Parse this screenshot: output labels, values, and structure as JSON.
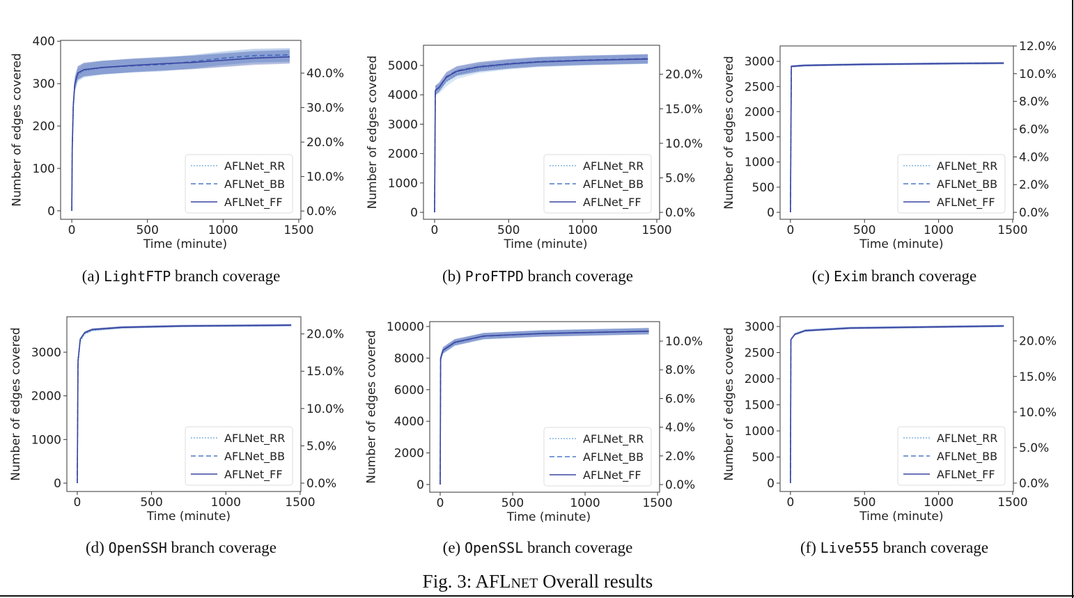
{
  "figure_caption": {
    "prefix": "Fig. 3: AFL",
    "smallcaps": "NET",
    "suffix": " Overall results"
  },
  "colors": {
    "AFLNet_RR": "#7fb2e0",
    "AFLNet_BB": "#4a78c8",
    "AFLNet_FF": "#3a45a0"
  },
  "chart_data": [
    {
      "type": "line",
      "caption_label": "(a)",
      "program": "LightFTP",
      "caption_suffix": "branch coverage",
      "xlabel": "Time (minute)",
      "ylabel": "Number of edges covered",
      "xlim": [
        -74,
        1514
      ],
      "ylim": [
        -20,
        402
      ],
      "y2lim": [
        -2.4,
        49.5
      ],
      "xticks": [
        0,
        500,
        1000,
        1500
      ],
      "yticks": [
        0,
        100,
        200,
        300,
        400
      ],
      "y2ticks": [
        0,
        10,
        20,
        30,
        40
      ],
      "y2format": "%.1f%%",
      "legend": "bottom-right",
      "band": 16,
      "series": [
        {
          "name": "AFLNet_RR",
          "style": "dotted",
          "x": [
            0,
            3,
            10,
            20,
            40,
            80,
            200,
            400,
            600,
            800,
            1000,
            1200,
            1440
          ],
          "y": [
            0,
            140,
            240,
            295,
            320,
            330,
            337,
            343,
            347,
            350,
            356,
            362,
            365
          ]
        },
        {
          "name": "AFLNet_BB",
          "style": "dashed",
          "x": [
            0,
            3,
            10,
            20,
            40,
            80,
            200,
            400,
            600,
            800,
            1000,
            1200,
            1440
          ],
          "y": [
            0,
            150,
            250,
            300,
            325,
            333,
            338,
            342,
            345,
            352,
            360,
            366,
            368
          ]
        },
        {
          "name": "AFLNet_FF",
          "style": "solid",
          "x": [
            0,
            3,
            10,
            20,
            40,
            80,
            200,
            400,
            600,
            800,
            1000,
            1200,
            1440
          ],
          "y": [
            0,
            150,
            250,
            300,
            325,
            333,
            338,
            343,
            347,
            350,
            355,
            360,
            363
          ]
        }
      ]
    },
    {
      "type": "line",
      "caption_label": "(b)",
      "program": "ProFTPD",
      "caption_suffix": "branch coverage",
      "xlabel": "Time (minute)",
      "ylabel": "Number of edges covered",
      "xlim": [
        -75,
        1519
      ],
      "ylim": [
        -237,
        5687
      ],
      "y2lim": [
        -1.0,
        24.2
      ],
      "xticks": [
        0,
        500,
        1000,
        1500
      ],
      "yticks": [
        0,
        1000,
        2000,
        3000,
        4000,
        5000
      ],
      "y2ticks": [
        0,
        5,
        10,
        15,
        20
      ],
      "y2format": "%.1f%%",
      "legend": "bottom-right",
      "band": 160,
      "series": [
        {
          "name": "AFLNet_RR",
          "style": "dotted",
          "x": [
            0,
            5,
            30,
            80,
            150,
            300,
            500,
            700,
            1000,
            1440
          ],
          "y": [
            0,
            4150,
            4200,
            4450,
            4700,
            4900,
            5020,
            5100,
            5160,
            5210
          ]
        },
        {
          "name": "AFLNet_BB",
          "style": "dashed",
          "x": [
            0,
            5,
            30,
            80,
            150,
            300,
            500,
            700,
            1000,
            1440
          ],
          "y": [
            0,
            4150,
            4260,
            4620,
            4820,
            4960,
            5060,
            5130,
            5180,
            5230
          ]
        },
        {
          "name": "AFLNet_FF",
          "style": "solid",
          "x": [
            0,
            5,
            30,
            80,
            150,
            300,
            500,
            700,
            1000,
            1440
          ],
          "y": [
            0,
            4150,
            4250,
            4600,
            4800,
            4950,
            5050,
            5120,
            5170,
            5220
          ]
        }
      ]
    },
    {
      "type": "line",
      "caption_label": "(c)",
      "program": "Exim",
      "caption_suffix": "branch coverage",
      "xlabel": "Time (minute)",
      "ylabel": "Number of edges covered",
      "xlim": [
        -70,
        1505
      ],
      "ylim": [
        -138,
        3306
      ],
      "y2lim": [
        -0.5,
        12.0
      ],
      "xticks": [
        0,
        500,
        1000,
        1500
      ],
      "yticks": [
        0,
        500,
        1000,
        1500,
        2000,
        2500,
        3000
      ],
      "y2ticks": [
        0,
        2,
        4,
        6,
        8,
        10,
        12
      ],
      "y2format": "%.1f%%",
      "legend": "bottom-right",
      "band": 20,
      "series": [
        {
          "name": "AFLNet_RR",
          "style": "dotted",
          "x": [
            0,
            4,
            6,
            100,
            500,
            1000,
            1440
          ],
          "y": [
            0,
            2000,
            2900,
            2920,
            2940,
            2955,
            2965
          ]
        },
        {
          "name": "AFLNet_BB",
          "style": "dashed",
          "x": [
            0,
            4,
            6,
            100,
            500,
            1000,
            1440
          ],
          "y": [
            0,
            2000,
            2900,
            2920,
            2940,
            2955,
            2965
          ]
        },
        {
          "name": "AFLNet_FF",
          "style": "solid",
          "x": [
            0,
            4,
            6,
            100,
            500,
            1000,
            1440
          ],
          "y": [
            0,
            2000,
            2900,
            2920,
            2940,
            2955,
            2965
          ]
        }
      ]
    },
    {
      "type": "line",
      "caption_label": "(d)",
      "program": "OpenSSH",
      "caption_suffix": "branch coverage",
      "xlabel": "Time (minute)",
      "ylabel": "Number of edges covered",
      "xlim": [
        -70,
        1505
      ],
      "ylim": [
        -191,
        3813
      ],
      "y2lim": [
        -1.12,
        22.3
      ],
      "xticks": [
        0,
        500,
        1000,
        1500
      ],
      "yticks": [
        0,
        1000,
        2000,
        3000
      ],
      "y2ticks": [
        0,
        5,
        10,
        15,
        20
      ],
      "y2format": "%.1f%%",
      "legend": "bottom-right",
      "band": 25,
      "series": [
        {
          "name": "AFLNet_RR",
          "style": "dotted",
          "x": [
            0,
            5,
            20,
            50,
            100,
            300,
            700,
            1440
          ],
          "y": [
            0,
            2700,
            3250,
            3420,
            3500,
            3565,
            3600,
            3620
          ]
        },
        {
          "name": "AFLNet_BB",
          "style": "dashed",
          "x": [
            0,
            5,
            20,
            50,
            100,
            300,
            700,
            1440
          ],
          "y": [
            0,
            2800,
            3300,
            3450,
            3520,
            3570,
            3600,
            3620
          ]
        },
        {
          "name": "AFLNet_FF",
          "style": "solid",
          "x": [
            0,
            5,
            20,
            50,
            100,
            300,
            700,
            1440
          ],
          "y": [
            0,
            2800,
            3300,
            3450,
            3520,
            3570,
            3600,
            3620
          ]
        }
      ]
    },
    {
      "type": "line",
      "caption_label": "(e)",
      "program": "OpenSSL",
      "caption_suffix": "branch coverage",
      "xlabel": "Time (minute)",
      "ylabel": "Number of edges covered",
      "xlim": [
        -72,
        1514
      ],
      "ylim": [
        -485,
        10308
      ],
      "y2lim": [
        -0.53,
        11.36
      ],
      "xticks": [
        0,
        500,
        1000,
        1500
      ],
      "yticks": [
        0,
        2000,
        4000,
        6000,
        8000,
        10000
      ],
      "y2ticks": [
        0,
        2,
        4,
        6,
        8,
        10
      ],
      "y2format": "%.1f%%",
      "legend": "bottom-right",
      "band": 200,
      "series": [
        {
          "name": "AFLNet_RR",
          "style": "dotted",
          "x": [
            0,
            3,
            20,
            100,
            300,
            700,
            1440
          ],
          "y": [
            0,
            7900,
            8450,
            8950,
            9400,
            9580,
            9720
          ]
        },
        {
          "name": "AFLNet_BB",
          "style": "dashed",
          "x": [
            0,
            3,
            20,
            100,
            300,
            700,
            1440
          ],
          "y": [
            0,
            8000,
            8500,
            9000,
            9380,
            9560,
            9700
          ]
        },
        {
          "name": "AFLNet_FF",
          "style": "solid",
          "x": [
            0,
            3,
            20,
            100,
            300,
            700,
            1440
          ],
          "y": [
            0,
            8000,
            8500,
            9000,
            9400,
            9550,
            9700
          ]
        }
      ]
    },
    {
      "type": "line",
      "caption_label": "(f)",
      "program": "Live555",
      "caption_suffix": "branch coverage",
      "xlabel": "Time (minute)",
      "ylabel": "Number of edges covered",
      "xlim": [
        -70,
        1505
      ],
      "ylim": [
        -160,
        3187
      ],
      "y2lim": [
        -1.18,
        23.4
      ],
      "xticks": [
        0,
        500,
        1000,
        1500
      ],
      "yticks": [
        0,
        500,
        1000,
        1500,
        2000,
        2500,
        3000
      ],
      "y2ticks": [
        0,
        5,
        10,
        15,
        20
      ],
      "y2format": "%.1f%%",
      "legend": "bottom-right",
      "band": 20,
      "series": [
        {
          "name": "AFLNet_RR",
          "style": "dotted",
          "x": [
            0,
            3,
            30,
            100,
            400,
            1440
          ],
          "y": [
            0,
            2750,
            2860,
            2930,
            2975,
            3012
          ]
        },
        {
          "name": "AFLNet_BB",
          "style": "dashed",
          "x": [
            0,
            3,
            30,
            100,
            400,
            1440
          ],
          "y": [
            0,
            2750,
            2850,
            2920,
            2970,
            3010
          ]
        },
        {
          "name": "AFLNet_FF",
          "style": "solid",
          "x": [
            0,
            3,
            30,
            100,
            400,
            1440
          ],
          "y": [
            0,
            2750,
            2850,
            2920,
            2970,
            3010
          ]
        }
      ]
    }
  ]
}
